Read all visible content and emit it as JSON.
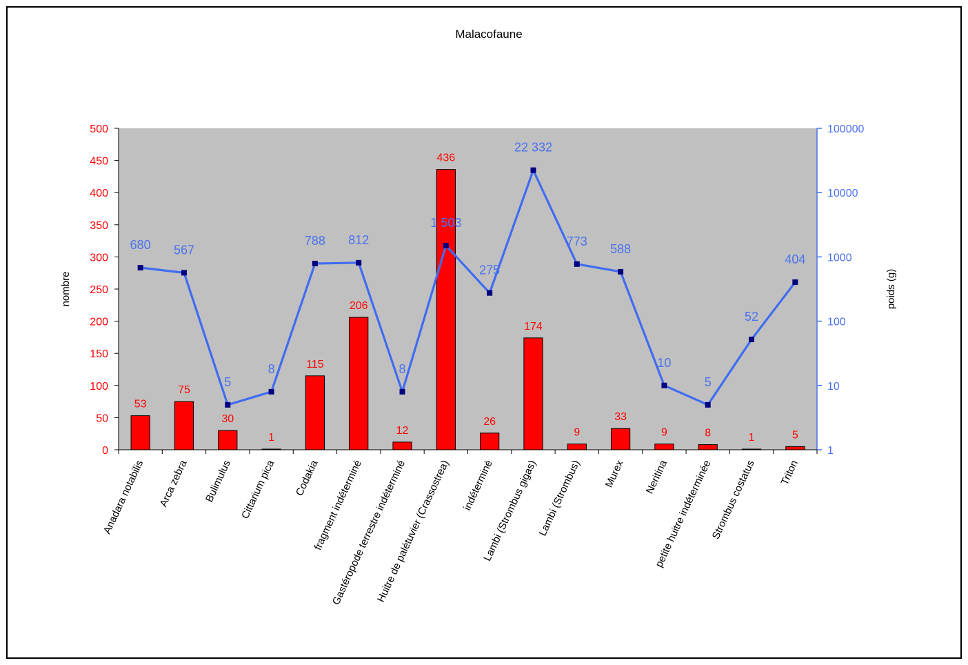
{
  "chart_data": {
    "type": "bar",
    "title": "Malacofaune",
    "categories": [
      "Anadara notabilis",
      "Arca zebra",
      "Bulimulus",
      "Cittarium pica",
      "Codakia",
      "fragment indéterminé",
      "Gastéropode terrestre indéterminé",
      "Huitre de palétuvier (Crassostrea)",
      "indéterminé",
      "Lambi (Strombus gigas)",
      "Lambi (Strombus)",
      "Murex",
      "Neritina",
      "petite huitre indéterminée",
      "Strombus costatus",
      "Triton"
    ],
    "series": [
      {
        "type": "bar",
        "axis": "left",
        "color": "#ff0000",
        "label_color": "#ff0000",
        "values": [
          53,
          75,
          30,
          1,
          115,
          206,
          12,
          436,
          26,
          174,
          9,
          33,
          9,
          8,
          1,
          5
        ],
        "labels": [
          "53",
          "75",
          "30",
          "1",
          "115",
          "206",
          "12",
          "436",
          "26",
          "174",
          "9",
          "33",
          "9",
          "8",
          "1",
          "5"
        ]
      },
      {
        "type": "line",
        "axis": "right",
        "color": "#3f6cf2",
        "marker_color": "#00007f",
        "label_color": "#4a72f0",
        "values": [
          680,
          567,
          5,
          8,
          788,
          812,
          8,
          1503,
          275,
          22332,
          773,
          588,
          10,
          5,
          52,
          404
        ],
        "labels": [
          "680",
          "567",
          "5",
          "8",
          "788",
          "812",
          "8",
          "1 503",
          "275",
          "22 332",
          "773",
          "588",
          "10",
          "5",
          "52",
          "404"
        ]
      }
    ],
    "y_left": {
      "label": "nombre",
      "range": [
        0,
        500
      ],
      "ticks": [
        0,
        50,
        100,
        150,
        200,
        250,
        300,
        350,
        400,
        450,
        500
      ],
      "tick_labels": [
        "0",
        "50",
        "100",
        "150",
        "200",
        "250",
        "300",
        "350",
        "400",
        "450",
        "500"
      ],
      "color": "#ff0000"
    },
    "y_right": {
      "label": "poids (g)",
      "scale": "log",
      "range": [
        1,
        100000
      ],
      "ticks": [
        1,
        10,
        100,
        1000,
        10000,
        100000
      ],
      "tick_labels": [
        "1",
        "10",
        "100",
        "1000",
        "10000",
        "100000"
      ],
      "color": "#4a72f0"
    },
    "plot_background": "#c0c0c0",
    "grid": false,
    "legend": "none"
  }
}
